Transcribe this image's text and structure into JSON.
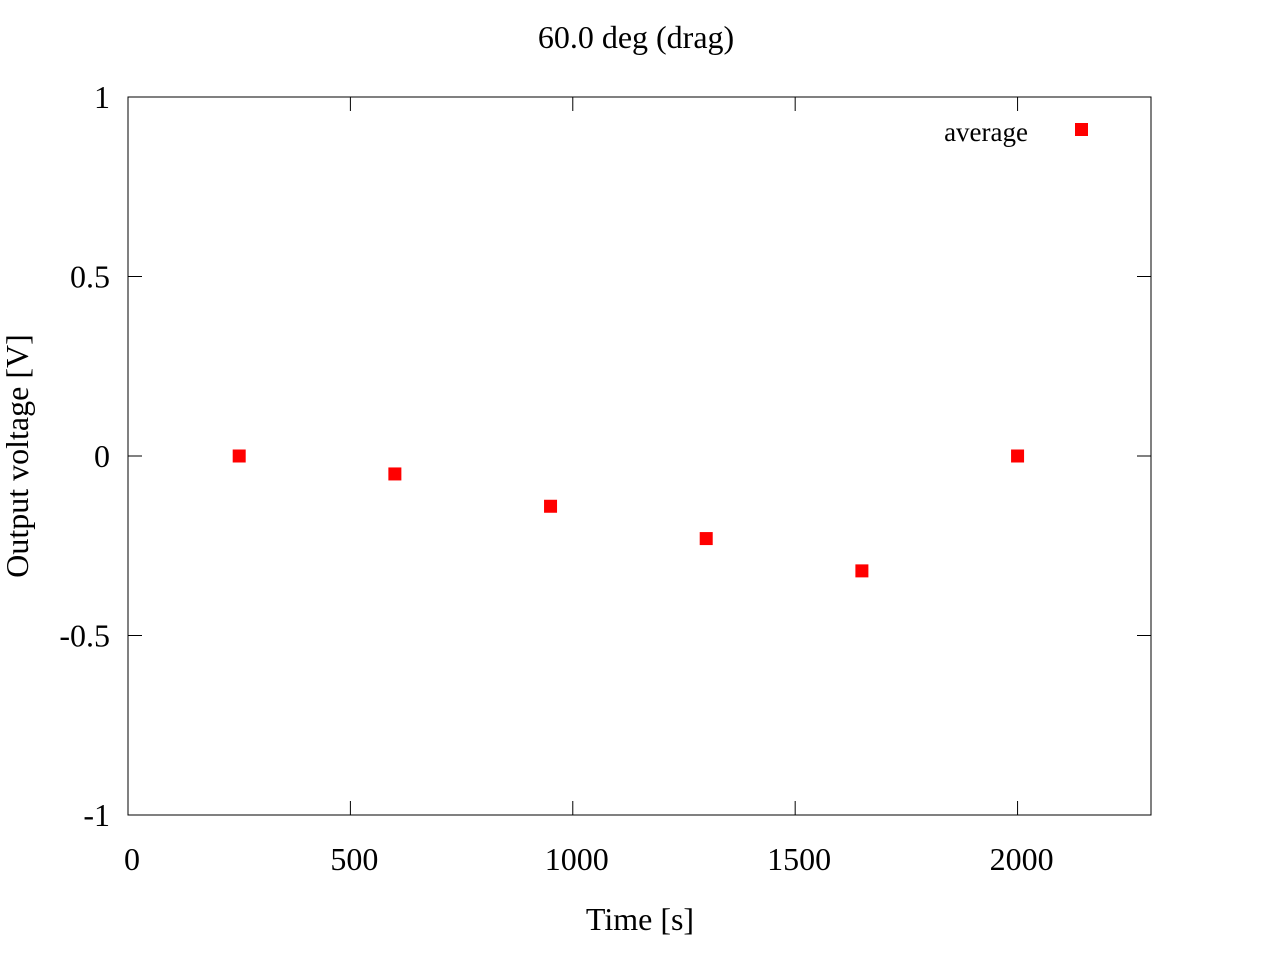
{
  "chart_data": {
    "type": "scatter",
    "title": "60.0 deg (drag)",
    "xlabel": "Time [s]",
    "ylabel": "Output voltage [V]",
    "xlim": [
      0,
      2300
    ],
    "ylim": [
      -1,
      1
    ],
    "xticks": [
      0,
      500,
      1000,
      1500,
      2000
    ],
    "yticks": [
      -1,
      -0.5,
      0,
      0.5,
      1
    ],
    "xtick_labels": [
      "0",
      "500",
      "1000",
      "1500",
      "2000"
    ],
    "ytick_labels": [
      "-1",
      "-0.5",
      "0",
      "0.5",
      "1"
    ],
    "grid": false,
    "legend_position": "top-right",
    "series": [
      {
        "name": "average",
        "color": "#ff0000",
        "marker": "square",
        "x": [
          250,
          600,
          950,
          1300,
          1650,
          2000
        ],
        "y": [
          0,
          -0.05,
          -0.14,
          -0.23,
          -0.32,
          0
        ]
      }
    ]
  }
}
